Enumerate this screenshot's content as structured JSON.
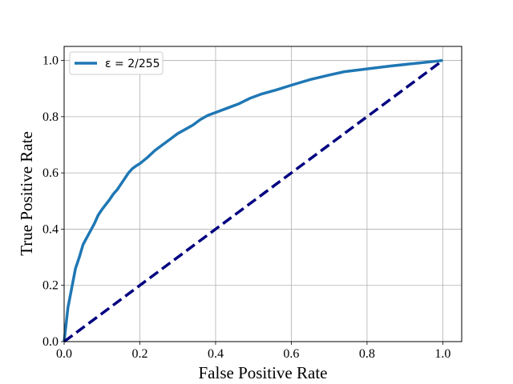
{
  "chart_data": {
    "type": "line",
    "xlabel": "False Positive Rate",
    "ylabel": "True Positive Rate",
    "xlim": [
      0.0,
      1.05
    ],
    "ylim": [
      0.0,
      1.05
    ],
    "xticks": [
      "0.0",
      "0.2",
      "0.4",
      "0.6",
      "0.8",
      "1.0"
    ],
    "yticks": [
      "0.0",
      "0.2",
      "0.4",
      "0.6",
      "0.8",
      "1.0"
    ],
    "grid": true,
    "legend_position": "top-left",
    "series": [
      {
        "name": "ε = 2/255",
        "style": "solid",
        "color": "#1f77b4",
        "x": [
          0.0,
          0.01,
          0.03,
          0.04,
          0.05,
          0.06,
          0.07,
          0.08,
          0.09,
          0.1,
          0.12,
          0.13,
          0.14,
          0.15,
          0.16,
          0.17,
          0.18,
          0.19,
          0.2,
          0.22,
          0.24,
          0.26,
          0.28,
          0.3,
          0.32,
          0.34,
          0.36,
          0.38,
          0.4,
          0.43,
          0.46,
          0.49,
          0.52,
          0.56,
          0.6,
          0.65,
          0.7,
          0.74,
          0.8,
          0.86,
          0.93,
          1.0
        ],
        "y": [
          0.0,
          0.12,
          0.26,
          0.3,
          0.345,
          0.37,
          0.395,
          0.42,
          0.45,
          0.47,
          0.505,
          0.525,
          0.54,
          0.56,
          0.58,
          0.6,
          0.615,
          0.625,
          0.633,
          0.655,
          0.68,
          0.7,
          0.72,
          0.74,
          0.755,
          0.77,
          0.79,
          0.805,
          0.815,
          0.83,
          0.845,
          0.865,
          0.88,
          0.895,
          0.912,
          0.932,
          0.948,
          0.96,
          0.97,
          0.98,
          0.99,
          1.0
        ]
      },
      {
        "name": "",
        "style": "dashed",
        "color": "#000080",
        "x": [
          0.0,
          1.0
        ],
        "y": [
          0.0,
          1.0
        ]
      }
    ]
  }
}
